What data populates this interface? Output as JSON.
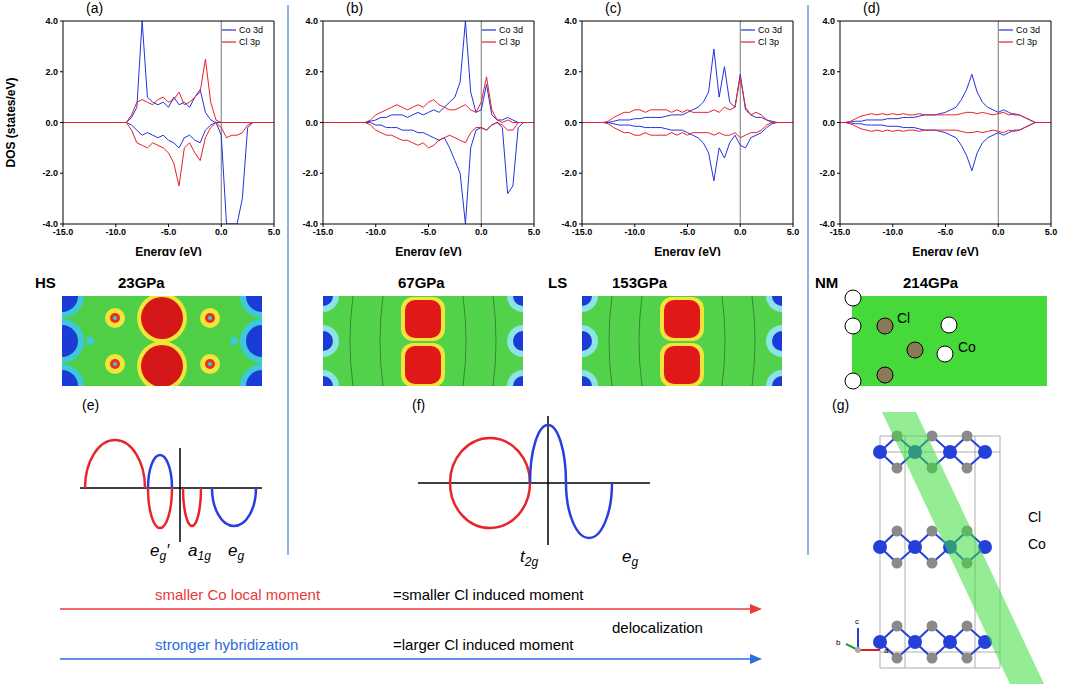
{
  "chart_data": [
    {
      "type": "line",
      "title": "(a)",
      "y_label": "DOS (states/eV)",
      "x_label": "Energy (eV)",
      "legend": "upper right",
      "fermi_level": 0,
      "xlim": [
        -15,
        5
      ],
      "xticks": [
        {
          "value": -15,
          "label": "-15.0"
        },
        {
          "value": -10,
          "label": "-10.0"
        },
        {
          "value": -5,
          "label": "-5.0"
        },
        {
          "value": 0,
          "label": "0.0"
        },
        {
          "value": 5,
          "label": "5.0"
        }
      ],
      "ylim": [
        -4,
        4
      ],
      "yticks": [
        {
          "value": -4,
          "label": "-4.0"
        },
        {
          "value": -2,
          "label": "-2.0"
        },
        {
          "value": 0,
          "label": "0.0"
        },
        {
          "value": 2,
          "label": "2.0"
        },
        {
          "value": 4,
          "label": "4.0"
        }
      ],
      "x": [
        -15,
        -14.5,
        -14,
        -13.5,
        -13,
        -12.5,
        -12,
        -11.5,
        -11,
        -10.5,
        -10,
        -9.5,
        -9,
        -8.5,
        -8,
        -7.5,
        -7,
        -6.5,
        -6,
        -5.5,
        -5,
        -4.5,
        -4,
        -3.5,
        -3,
        -2.5,
        -2,
        -1.5,
        -1,
        -0.5,
        0,
        0.5,
        1,
        1.5,
        2,
        2.5,
        3,
        3.5,
        4,
        4.5,
        5
      ],
      "series": [
        {
          "name": "Co 3d",
          "color": "#2233dd",
          "values": [
            0,
            0,
            0,
            0,
            0,
            0,
            0,
            0,
            0,
            0,
            0,
            0,
            0,
            0.2,
            0.6,
            4,
            1,
            0.8,
            0.7,
            0.8,
            0.6,
            1,
            0.7,
            0.8,
            0.6,
            1,
            1.3,
            0.4,
            0.1,
            0,
            0,
            0,
            0,
            0,
            0,
            0,
            0,
            0,
            0,
            0,
            0
          ],
          "spin_down_values": [
            0,
            0,
            0,
            0,
            0,
            0,
            0,
            0,
            0,
            0,
            0,
            0,
            0,
            -0.1,
            -0.3,
            -0.5,
            -0.4,
            -0.5,
            -0.6,
            -0.5,
            -0.7,
            -0.8,
            -1,
            -0.6,
            -0.5,
            -0.7,
            -0.8,
            -0.3,
            -0.1,
            0,
            -0.5,
            -4,
            -4,
            -4,
            -3,
            -0.2,
            0,
            0,
            0,
            0,
            0
          ]
        },
        {
          "name": "Cl 3p",
          "color": "#e8202a",
          "values": [
            0,
            0,
            0,
            0,
            0,
            0,
            0,
            0,
            0,
            0,
            0,
            0,
            0,
            0.3,
            0.8,
            0.9,
            0.8,
            0.7,
            0.9,
            1,
            0.8,
            0.9,
            1.2,
            0.7,
            0.8,
            1,
            1.2,
            2.5,
            0.8,
            0.1,
            0,
            0,
            0,
            0,
            0,
            0,
            0,
            0,
            0,
            0,
            0
          ],
          "spin_down_values": [
            0,
            0,
            0,
            0,
            0,
            0,
            0,
            0,
            0,
            0,
            0,
            0,
            0,
            -0.3,
            -0.8,
            -0.9,
            -1,
            -0.8,
            -0.9,
            -1,
            -1.2,
            -1.6,
            -2.5,
            -1,
            -0.8,
            -1.2,
            -1.5,
            -0.6,
            -0.2,
            0,
            -0.2,
            -0.6,
            -0.5,
            -0.5,
            -0.4,
            -0.1,
            0,
            0,
            0,
            0,
            0
          ]
        }
      ]
    },
    {
      "type": "line",
      "title": "(b)",
      "x_label": "Energy (eV)",
      "legend": "upper right",
      "fermi_level": 0,
      "xlim": [
        -15,
        5
      ],
      "xticks": [
        {
          "value": -15,
          "label": "-15.0"
        },
        {
          "value": -10,
          "label": "-10.0"
        },
        {
          "value": -5,
          "label": "-5.0"
        },
        {
          "value": 0,
          "label": "0.0"
        },
        {
          "value": 5,
          "label": "5.0"
        }
      ],
      "ylim": [
        -4,
        4
      ],
      "yticks": [
        {
          "value": -4,
          "label": "-4.0"
        },
        {
          "value": -2,
          "label": "-2.0"
        },
        {
          "value": 0,
          "label": "0.0"
        },
        {
          "value": 2,
          "label": "2.0"
        },
        {
          "value": 4,
          "label": "4.0"
        }
      ],
      "x": [
        -15,
        -14.5,
        -14,
        -13.5,
        -13,
        -12.5,
        -12,
        -11.5,
        -11,
        -10.5,
        -10,
        -9.5,
        -9,
        -8.5,
        -8,
        -7.5,
        -7,
        -6.5,
        -6,
        -5.5,
        -5,
        -4.5,
        -4,
        -3.5,
        -3,
        -2.5,
        -2,
        -1.5,
        -1,
        -0.5,
        0,
        0.5,
        1,
        1.5,
        2,
        2.5,
        3,
        3.5,
        4,
        4.5,
        5
      ],
      "series": [
        {
          "name": "Co 3d",
          "color": "#2233dd",
          "values": [
            0,
            0,
            0,
            0,
            0,
            0,
            0,
            0,
            0,
            0.05,
            0.1,
            0.2,
            0.2,
            0.3,
            0.3,
            0.3,
            0.2,
            0.3,
            0.4,
            0.3,
            0.4,
            0.5,
            0.4,
            0.6,
            0.8,
            1,
            1.6,
            4,
            1.2,
            0.4,
            0.5,
            1.5,
            0.3,
            0.1,
            0.1,
            0.2,
            0.1,
            0,
            0,
            0,
            0
          ],
          "spin_down_values": [
            0,
            0,
            0,
            0,
            0,
            0,
            0,
            0,
            0,
            0,
            -0.1,
            -0.1,
            -0.2,
            -0.2,
            -0.2,
            -0.3,
            -0.3,
            -0.3,
            -0.4,
            -0.4,
            -0.5,
            -0.6,
            -0.7,
            -0.6,
            -1,
            -1.5,
            -2,
            -4,
            -1,
            -0.3,
            -0.2,
            -0.3,
            -0.1,
            0,
            -0.2,
            -2.8,
            -2.5,
            -0.2,
            0,
            0,
            0
          ]
        },
        {
          "name": "Cl 3p",
          "color": "#e8202a",
          "values": [
            0,
            0,
            0,
            0,
            0,
            0,
            0,
            0,
            0,
            0.1,
            0.3,
            0.4,
            0.5,
            0.6,
            0.7,
            0.6,
            0.5,
            0.6,
            0.7,
            0.6,
            0.8,
            0.9,
            0.7,
            0.6,
            0.5,
            0.5,
            0.6,
            0.7,
            0.5,
            0.4,
            0.8,
            1.8,
            0.5,
            0.1,
            0,
            0.1,
            0,
            0,
            0,
            0,
            0
          ],
          "spin_down_values": [
            0,
            0,
            0,
            0,
            0,
            0,
            0,
            0,
            0,
            -0.1,
            -0.3,
            -0.4,
            -0.5,
            -0.5,
            -0.6,
            -0.7,
            -0.7,
            -0.8,
            -0.9,
            -0.8,
            -1,
            -0.9,
            -0.7,
            -0.6,
            -0.5,
            -0.6,
            -0.7,
            -0.8,
            -0.4,
            -0.2,
            -0.2,
            -0.3,
            -0.1,
            0,
            -0.1,
            -0.3,
            -0.3,
            0,
            0,
            0,
            0
          ]
        }
      ]
    },
    {
      "type": "line",
      "title": "(c)",
      "x_label": "Energy (eV)",
      "legend": "upper right",
      "fermi_level": 0,
      "xlim": [
        -15,
        5
      ],
      "xticks": [
        {
          "value": -15,
          "label": "-15.0"
        },
        {
          "value": -10,
          "label": "-10.0"
        },
        {
          "value": -5,
          "label": "-5.0"
        },
        {
          "value": 0,
          "label": "0.0"
        },
        {
          "value": 5,
          "label": "5.0"
        }
      ],
      "ylim": [
        -4,
        4
      ],
      "yticks": [
        {
          "value": -4,
          "label": "-4.0"
        },
        {
          "value": -2,
          "label": "-2.0"
        },
        {
          "value": 0,
          "label": "0.0"
        },
        {
          "value": 2,
          "label": "2.0"
        },
        {
          "value": 4,
          "label": "4.0"
        }
      ],
      "x": [
        -15,
        -14.5,
        -14,
        -13.5,
        -13,
        -12.5,
        -12,
        -11.5,
        -11,
        -10.5,
        -10,
        -9.5,
        -9,
        -8.5,
        -8,
        -7.5,
        -7,
        -6.5,
        -6,
        -5.5,
        -5,
        -4.5,
        -4,
        -3.5,
        -3,
        -2.5,
        -2,
        -1.5,
        -1,
        -0.5,
        0,
        0.5,
        1,
        1.5,
        2,
        2.5,
        3,
        3.5,
        4,
        4.5,
        5
      ],
      "series": [
        {
          "name": "Co 3d",
          "color": "#2233dd",
          "values": [
            0,
            0,
            0,
            0,
            0,
            0,
            0.05,
            0.1,
            0.1,
            0.1,
            0.15,
            0.15,
            0.2,
            0.2,
            0.2,
            0.2,
            0.25,
            0.3,
            0.3,
            0.3,
            0.4,
            0.5,
            0.6,
            0.8,
            1.2,
            2.9,
            1,
            2.2,
            0.8,
            0.6,
            1.9,
            0.5,
            0.3,
            0.2,
            0.2,
            0.1,
            0.05,
            0,
            0,
            0,
            0
          ],
          "spin_down_values": [
            0,
            0,
            0,
            0,
            0,
            0,
            -0.05,
            -0.1,
            -0.1,
            -0.1,
            -0.15,
            -0.15,
            -0.2,
            -0.2,
            -0.2,
            -0.2,
            -0.25,
            -0.3,
            -0.3,
            -0.3,
            -0.4,
            -0.5,
            -0.6,
            -0.8,
            -1.2,
            -2.3,
            -1,
            -1.4,
            -0.8,
            -0.5,
            -0.9,
            -1,
            -0.6,
            -0.5,
            -0.4,
            -0.2,
            -0.05,
            0,
            0,
            0,
            0
          ]
        },
        {
          "name": "Cl 3p",
          "color": "#e8202a",
          "values": [
            0,
            0,
            0,
            0,
            0,
            0.05,
            0.2,
            0.3,
            0.4,
            0.4,
            0.5,
            0.5,
            0.4,
            0.5,
            0.5,
            0.5,
            0.5,
            0.4,
            0.5,
            0.4,
            0.5,
            0.4,
            0.4,
            0.4,
            0.4,
            0.5,
            0.4,
            0.6,
            0.5,
            0.6,
            1.8,
            0.6,
            0.3,
            0.4,
            0.3,
            0.1,
            0,
            0,
            0,
            0,
            0
          ],
          "spin_down_values": [
            0,
            0,
            0,
            0,
            0,
            -0.05,
            -0.2,
            -0.3,
            -0.4,
            -0.4,
            -0.5,
            -0.5,
            -0.4,
            -0.5,
            -0.5,
            -0.5,
            -0.5,
            -0.4,
            -0.5,
            -0.4,
            -0.5,
            -0.4,
            -0.4,
            -0.4,
            -0.4,
            -0.5,
            -0.4,
            -0.5,
            -0.5,
            -0.4,
            -0.6,
            -0.5,
            -0.4,
            -0.4,
            -0.3,
            -0.1,
            0,
            0,
            0,
            0,
            0
          ]
        }
      ]
    },
    {
      "type": "line",
      "title": "(d)",
      "x_label": "Energy (eV)",
      "legend": "upper right",
      "fermi_level": 0,
      "xlim": [
        -15,
        5
      ],
      "xticks": [
        {
          "value": -15,
          "label": "-15.0"
        },
        {
          "value": -10,
          "label": "-10.0"
        },
        {
          "value": -5,
          "label": "-5.0"
        },
        {
          "value": 0,
          "label": "0.0"
        },
        {
          "value": 5,
          "label": "5.0"
        }
      ],
      "ylim": [
        -4,
        4
      ],
      "yticks": [
        {
          "value": -4,
          "label": "-4.0"
        },
        {
          "value": -2,
          "label": "-2.0"
        },
        {
          "value": 0,
          "label": "0.0"
        },
        {
          "value": 2,
          "label": "2.0"
        },
        {
          "value": 4,
          "label": "4.0"
        }
      ],
      "x": [
        -15,
        -14.5,
        -14,
        -13.5,
        -13,
        -12.5,
        -12,
        -11.5,
        -11,
        -10.5,
        -10,
        -9.5,
        -9,
        -8.5,
        -8,
        -7.5,
        -7,
        -6.5,
        -6,
        -5.5,
        -5,
        -4.5,
        -4,
        -3.5,
        -3,
        -2.5,
        -2,
        -1.5,
        -1,
        -0.5,
        0,
        0.5,
        1,
        1.5,
        2,
        2.5,
        3,
        3.5,
        4,
        4.5,
        5
      ],
      "series": [
        {
          "name": "Co 3d",
          "color": "#2233dd",
          "values": [
            0,
            0,
            0.02,
            0.05,
            0.05,
            0.1,
            0.1,
            0.1,
            0.1,
            0.15,
            0.15,
            0.15,
            0.2,
            0.2,
            0.2,
            0.25,
            0.3,
            0.3,
            0.3,
            0.35,
            0.4,
            0.5,
            0.6,
            0.9,
            1.3,
            1.9,
            1.2,
            0.8,
            0.6,
            0.5,
            0.4,
            0.5,
            0.4,
            0.3,
            0.3,
            0.2,
            0.1,
            0,
            0,
            0,
            0
          ],
          "spin_down_values": [
            0,
            0,
            -0.02,
            -0.05,
            -0.05,
            -0.1,
            -0.1,
            -0.1,
            -0.1,
            -0.15,
            -0.15,
            -0.15,
            -0.2,
            -0.2,
            -0.2,
            -0.25,
            -0.3,
            -0.3,
            -0.3,
            -0.35,
            -0.4,
            -0.5,
            -0.6,
            -0.9,
            -1.3,
            -1.9,
            -1.2,
            -0.8,
            -0.6,
            -0.5,
            -0.4,
            -0.5,
            -0.4,
            -0.3,
            -0.3,
            -0.2,
            -0.1,
            0,
            0,
            0,
            0
          ]
        },
        {
          "name": "Cl 3p",
          "color": "#e8202a",
          "values": [
            0,
            0,
            0.05,
            0.15,
            0.25,
            0.3,
            0.35,
            0.3,
            0.35,
            0.3,
            0.35,
            0.3,
            0.35,
            0.3,
            0.3,
            0.35,
            0.3,
            0.3,
            0.3,
            0.3,
            0.3,
            0.3,
            0.3,
            0.35,
            0.4,
            0.4,
            0.35,
            0.4,
            0.35,
            0.3,
            0.35,
            0.4,
            0.3,
            0.35,
            0.3,
            0.2,
            0.1,
            0,
            0,
            0,
            0
          ],
          "spin_down_values": [
            0,
            0,
            -0.05,
            -0.15,
            -0.25,
            -0.3,
            -0.35,
            -0.3,
            -0.35,
            -0.3,
            -0.35,
            -0.3,
            -0.35,
            -0.3,
            -0.3,
            -0.35,
            -0.3,
            -0.3,
            -0.3,
            -0.3,
            -0.3,
            -0.3,
            -0.3,
            -0.35,
            -0.4,
            -0.4,
            -0.35,
            -0.4,
            -0.35,
            -0.3,
            -0.35,
            -0.4,
            -0.3,
            -0.35,
            -0.3,
            -0.2,
            -0.1,
            0,
            0,
            0,
            0
          ]
        }
      ]
    }
  ],
  "maps": [
    {
      "phase": "HS",
      "pressure": "23GPa"
    },
    {
      "pressure": "67GPa"
    },
    {
      "phase": "LS",
      "pressure": "153GPa"
    },
    {
      "phase": "NM",
      "pressure": "214GPa",
      "atom_labels": [
        "Cl",
        "Co"
      ]
    }
  ],
  "schematics": [
    {
      "title": "(e)",
      "labels": [
        {
          "text": "e",
          "sub": "g",
          "suffix": "′"
        },
        {
          "text": "a",
          "sub": "1g"
        },
        {
          "text": "e",
          "sub": "g"
        }
      ]
    },
    {
      "title": "(f)",
      "labels": [
        {
          "text": "t",
          "sub": "2g"
        },
        {
          "text": "e",
          "sub": "g"
        }
      ]
    }
  ],
  "structure": {
    "title": "(g)",
    "labels": [
      "Cl",
      "Co"
    ],
    "axis_labels": [
      "c",
      "b",
      "a"
    ]
  },
  "arrows": [
    {
      "text": "smaller Co local moment",
      "color": "#e83a3a",
      "consequence": "=smaller Cl induced moment",
      "caption": "delocalization"
    },
    {
      "text": "stronger hybridization",
      "color": "#2d6be0",
      "consequence": "=larger Cl induced moment"
    }
  ]
}
